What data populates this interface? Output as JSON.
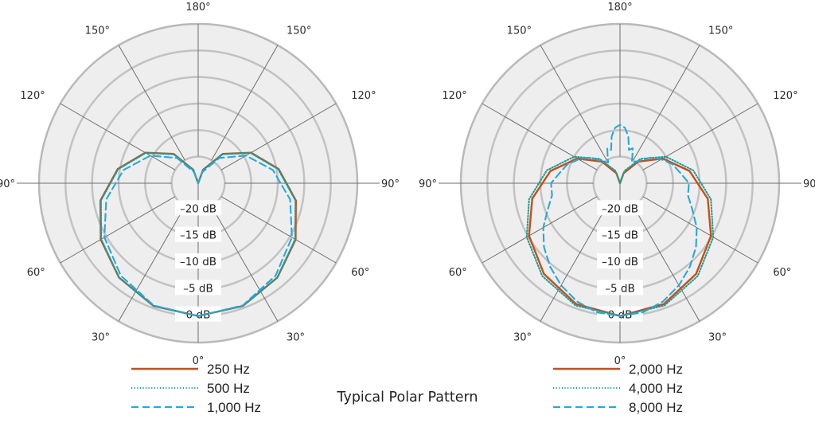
{
  "title": "Typical Polar Pattern",
  "colors": {
    "plate": "#efeeee",
    "ring": "#c2c2c2",
    "outer_ring": "#b9b9b9",
    "spoke": "#6f6f6f",
    "orange": "#c94d16",
    "teal": "#1b9e9c",
    "blue": "#27a8dc"
  },
  "chart_data": [
    {
      "type": "polar",
      "angle_labels": [
        "0°",
        "30°",
        "30°",
        "60°",
        "60°",
        "90°",
        "90°",
        "120°",
        "120°",
        "150°",
        "150°",
        "180°"
      ],
      "radial_labels": [
        "–20 dB",
        "–15 dB",
        "–10 dB",
        "–5 dB",
        "0 dB"
      ],
      "rlim": [
        -25,
        5
      ],
      "legend": [
        "250 Hz",
        "500 Hz",
        "1,000 Hz"
      ],
      "series": [
        {
          "name": "250 Hz",
          "color_key": "orange",
          "dash": "solid",
          "angles": [
            0,
            20,
            40,
            60,
            80,
            100,
            120,
            140,
            160,
            180
          ],
          "values": [
            0,
            -0.4,
            -1.8,
            -3.8,
            -6.3,
            -9.6,
            -13.5,
            -17.8,
            -22.3,
            -25
          ]
        },
        {
          "name": "500 Hz",
          "color_key": "teal",
          "dash": "dotted",
          "angles": [
            0,
            20,
            40,
            60,
            80,
            100,
            120,
            140,
            160,
            180
          ],
          "values": [
            0,
            -0.4,
            -1.8,
            -3.9,
            -6.4,
            -9.7,
            -13.6,
            -17.9,
            -22.4,
            -25
          ]
        },
        {
          "name": "1,000 Hz",
          "color_key": "blue",
          "dash": "dashed",
          "angles": [
            0,
            20,
            40,
            60,
            80,
            100,
            120,
            140,
            160,
            180
          ],
          "values": [
            0,
            -0.5,
            -2.3,
            -4.6,
            -7.4,
            -10.7,
            -14.6,
            -18.8,
            -22.8,
            -25
          ]
        }
      ]
    },
    {
      "type": "polar",
      "angle_labels": [
        "0°",
        "30°",
        "30°",
        "60°",
        "60°",
        "90°",
        "90°",
        "120°",
        "120°",
        "150°",
        "150°",
        "180°"
      ],
      "radial_labels": [
        "–20 dB",
        "–15 dB",
        "–10 dB",
        "–5 dB",
        "0 dB"
      ],
      "rlim": [
        -25,
        5
      ],
      "legend": [
        "2,000 Hz",
        "4,000 Hz",
        "8,000 Hz"
      ],
      "series": [
        {
          "name": "2,000 Hz",
          "color_key": "orange",
          "dash": "solid",
          "angles": [
            0,
            20,
            40,
            60,
            80,
            100,
            120,
            140,
            160,
            180
          ],
          "values": [
            0,
            -0.8,
            -2.7,
            -5.2,
            -8.2,
            -11.7,
            -15.7,
            -19.7,
            -23,
            -25
          ]
        },
        {
          "name": "4,000 Hz",
          "color_key": "teal",
          "dash": "dotted",
          "angles": [
            0,
            20,
            40,
            60,
            80,
            100,
            120,
            140,
            160,
            180
          ],
          "values": [
            0,
            -0.5,
            -2.2,
            -4.7,
            -7.6,
            -11,
            -15,
            -19,
            -22.5,
            -25
          ]
        },
        {
          "name": "8,000 Hz",
          "color_key": "blue",
          "dash": "dashed",
          "angles": [
            0,
            10,
            20,
            30,
            40,
            50,
            60,
            70,
            80,
            90,
            100,
            110,
            120,
            130,
            140,
            150,
            155,
            160,
            165,
            170,
            175,
            180
          ],
          "values": [
            0,
            -0.3,
            -1.3,
            -2.8,
            -4.5,
            -6.3,
            -8.3,
            -10.5,
            -12,
            -12,
            -13.5,
            -14.5,
            -16,
            -17.5,
            -19.5,
            -20.5,
            -19.5,
            -18,
            -18.5,
            -16,
            -14.5,
            -14
          ]
        }
      ]
    }
  ]
}
